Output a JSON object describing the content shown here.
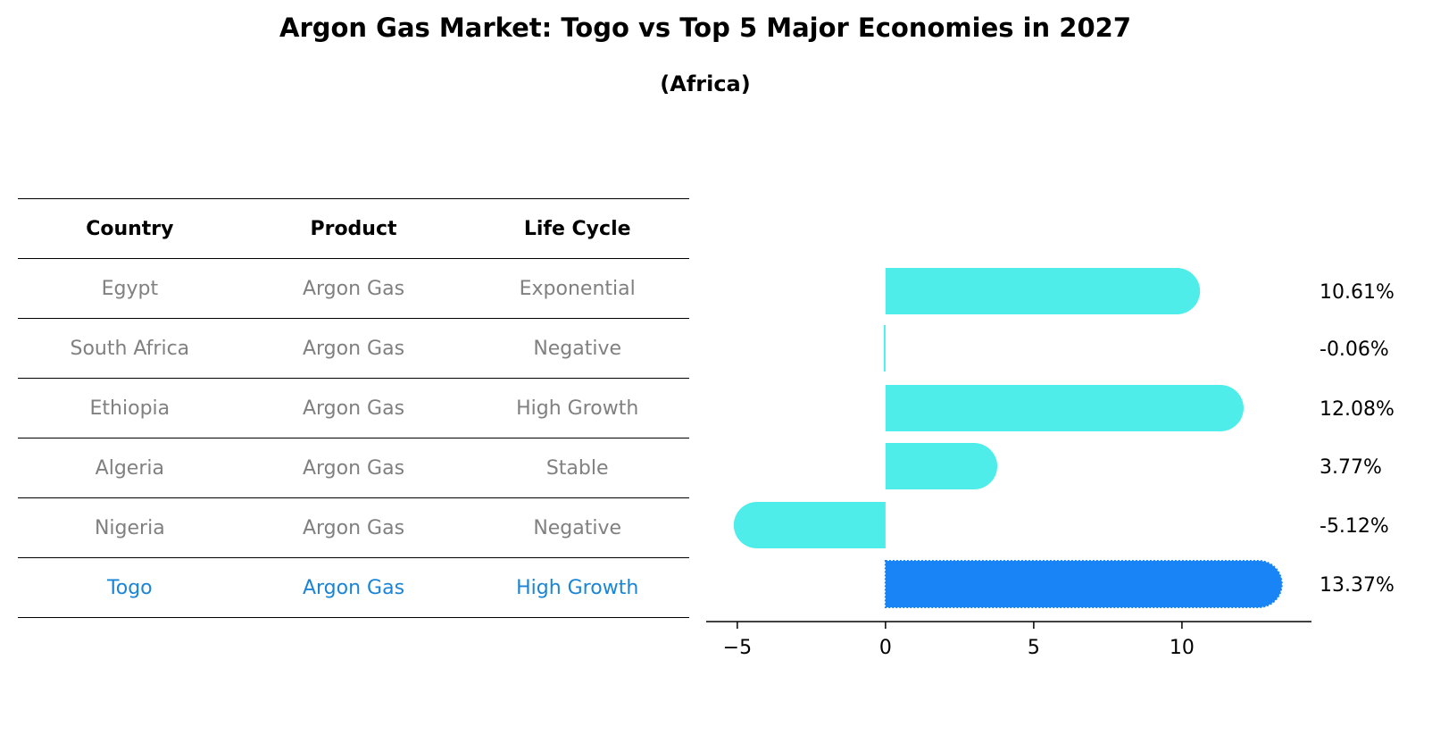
{
  "title": "Argon Gas Market: Togo vs Top 5 Major Economies in 2027",
  "subtitle": "(Africa)",
  "table": {
    "headers": [
      "Country",
      "Product",
      "Life Cycle"
    ],
    "rows": [
      {
        "country": "Egypt",
        "product": "Argon Gas",
        "life_cycle": "Exponential",
        "highlight": false
      },
      {
        "country": "South Africa",
        "product": "Argon Gas",
        "life_cycle": "Negative",
        "highlight": false
      },
      {
        "country": "Ethiopia",
        "product": "Argon Gas",
        "life_cycle": "High Growth",
        "highlight": false
      },
      {
        "country": "Algeria",
        "product": "Argon Gas",
        "life_cycle": "Stable",
        "highlight": false
      },
      {
        "country": "Nigeria",
        "product": "Argon Gas",
        "life_cycle": "Negative",
        "highlight": false
      },
      {
        "country": "Togo",
        "product": "Argon Gas",
        "life_cycle": "High Growth",
        "highlight": true
      }
    ]
  },
  "colors": {
    "bar": "#4eede9",
    "highlight_bar": "#1884f6",
    "highlight_text": "#1a85d6",
    "table_text": "#808080",
    "axis": "#000000"
  },
  "chart_data": {
    "type": "bar",
    "orientation": "horizontal",
    "categories": [
      "Egypt",
      "South Africa",
      "Ethiopia",
      "Algeria",
      "Nigeria",
      "Togo"
    ],
    "values": [
      10.61,
      -0.06,
      12.08,
      3.77,
      -5.12,
      13.37
    ],
    "value_labels": [
      "10.61%",
      "-0.06%",
      "12.08%",
      "3.77%",
      "-5.12%",
      "13.37%"
    ],
    "highlight": "Togo",
    "xticks": [
      -5,
      0,
      5,
      10
    ],
    "xtick_labels": [
      "−5",
      "0",
      "5",
      "10"
    ],
    "xlim": [
      -6.05,
      14.37
    ],
    "grid": false,
    "legend": "none"
  }
}
